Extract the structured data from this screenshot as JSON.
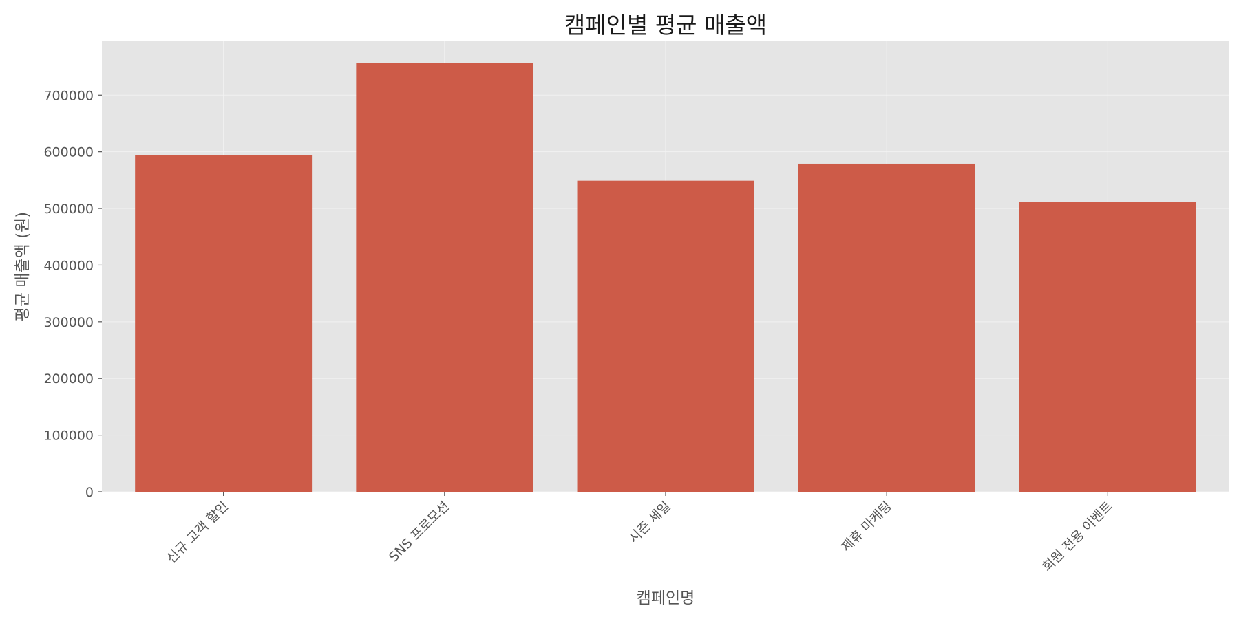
{
  "chart_data": {
    "type": "bar",
    "title": "캠페인별 평균 매출액",
    "xlabel": "캠페인명",
    "ylabel": "평균 매출액 (원)",
    "categories": [
      "신규 고객 할인",
      "SNS 프로모션",
      "시즌 세일",
      "제휴 마케팅",
      "회원 전용 이벤트"
    ],
    "values": [
      594000,
      757000,
      549000,
      579000,
      512000
    ],
    "ylim": [
      0,
      795000
    ],
    "yticks": [
      0,
      100000,
      200000,
      300000,
      400000,
      500000,
      600000,
      700000
    ],
    "ytick_labels": [
      "0",
      "100000",
      "200000",
      "300000",
      "400000",
      "500000",
      "600000",
      "700000"
    ],
    "grid": true,
    "legend": "none",
    "colors": {
      "bar": "#cd5b48",
      "plot_background": "#e5e5e5",
      "grid": "#f2f2f2",
      "text": "#555555",
      "title": "#1a1a1a"
    }
  }
}
